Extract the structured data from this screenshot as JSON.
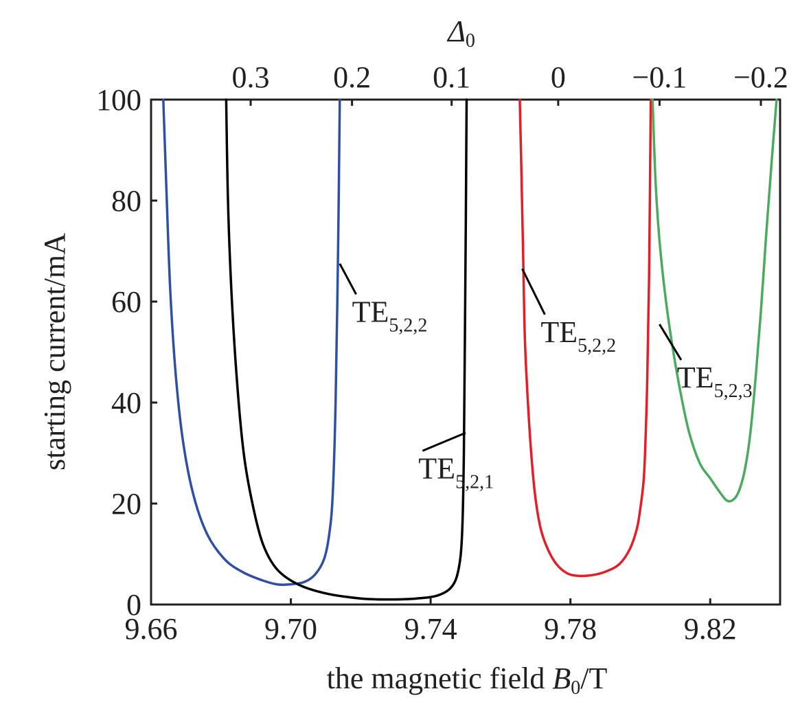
{
  "chart_data": {
    "type": "line",
    "title": "",
    "xlabel": "the magnetic field ",
    "xlabel_var": "B",
    "xlabel_sub": "0",
    "xlabel_unit": "/T",
    "ylabel": "starting current/mA",
    "top_axis_label": "Δ",
    "top_axis_sub": "0",
    "xlim": [
      9.66,
      9.84
    ],
    "ylim": [
      0,
      100
    ],
    "x_ticks": [
      9.66,
      9.7,
      9.74,
      9.78,
      9.82
    ],
    "x_tick_labels": [
      "9.66",
      "9.70",
      "9.74",
      "9.78",
      "9.82"
    ],
    "y_ticks": [
      0,
      20,
      40,
      60,
      80,
      100
    ],
    "y_tick_labels": [
      "0",
      "20",
      "40",
      "60",
      "80",
      "100"
    ],
    "top_ticks_x": [
      9.6885,
      9.7175,
      9.746,
      9.7765,
      9.8055,
      9.8345
    ],
    "top_tick_labels": [
      "0.3",
      "0.2",
      "0.1",
      "0",
      "−0.1",
      "−0.2"
    ],
    "grid": false,
    "series": [
      {
        "mode": "TE5,2,2",
        "color": "#2e4fa3",
        "x": [
          9.6635,
          9.6645,
          9.6655,
          9.667,
          9.669,
          9.672,
          9.676,
          9.681,
          9.686,
          9.691,
          9.696,
          9.7,
          9.704,
          9.707,
          9.7095,
          9.711,
          9.712,
          9.7128,
          9.7135,
          9.714
        ],
        "y": [
          100,
          80,
          62,
          46,
          33,
          22,
          14,
          9,
          6.5,
          5,
          4,
          4,
          4.5,
          6,
          9,
          14,
          22,
          40,
          70,
          100
        ]
      },
      {
        "mode": "TE5,2,1",
        "color": "#000000",
        "x": [
          9.6815,
          9.682,
          9.683,
          9.6845,
          9.6865,
          9.689,
          9.692,
          9.696,
          9.702,
          9.71,
          9.72,
          9.728,
          9.736,
          9.742,
          9.746,
          9.748,
          9.749,
          9.7495,
          9.75,
          9.7503
        ],
        "y": [
          100,
          80,
          62,
          45,
          30,
          20,
          12,
          7,
          4,
          2.2,
          1.2,
          1,
          1.2,
          1.8,
          3.5,
          7,
          14,
          30,
          70,
          100
        ]
      },
      {
        "mode": "TE5,2,2",
        "color": "#e31e26",
        "x": [
          9.7655,
          9.766,
          9.7665,
          9.767,
          9.768,
          9.769,
          9.77,
          9.7715,
          9.7735,
          9.776,
          9.779,
          9.782,
          9.786,
          9.79,
          9.794,
          9.797,
          9.799,
          9.8,
          9.801,
          9.8015,
          9.802,
          9.8025,
          9.803
        ],
        "y": [
          100,
          85,
          68,
          52,
          38,
          28,
          21,
          15,
          11,
          8,
          6.2,
          5.7,
          5.8,
          6.5,
          8,
          11,
          15,
          19,
          25,
          33,
          45,
          65,
          100
        ]
      },
      {
        "mode": "TE5,2,3",
        "color": "#4aaa5e",
        "x": [
          9.8035,
          9.804,
          9.8045,
          9.8055,
          9.807,
          9.809,
          9.8115,
          9.814,
          9.817,
          9.82,
          9.823,
          9.825,
          9.827,
          9.8285,
          9.83,
          9.8315,
          9.833,
          9.8345,
          9.836,
          9.8375,
          9.839
        ],
        "y": [
          100,
          90,
          82,
          72,
          62,
          52,
          42,
          34,
          28,
          25,
          22,
          20.5,
          21,
          23,
          27,
          34,
          45,
          58,
          73,
          87,
          100
        ]
      }
    ],
    "annotations": [
      {
        "base": "TE",
        "sub": "5,2,2",
        "tip_x": 9.714,
        "tip_y": 67.5,
        "text_x": 9.7175,
        "text_y": 56
      },
      {
        "base": "TE",
        "sub": "5,2,1",
        "tip_x": 9.75,
        "tip_y": 34,
        "text_x": 9.7365,
        "text_y": 25
      },
      {
        "base": "TE",
        "sub": "5,2,2",
        "tip_x": 9.7662,
        "tip_y": 66.5,
        "text_x": 9.7715,
        "text_y": 52
      },
      {
        "base": "TE",
        "sub": "5,2,3",
        "tip_x": 9.8055,
        "tip_y": 55.5,
        "text_x": 9.8105,
        "text_y": 43
      }
    ]
  }
}
